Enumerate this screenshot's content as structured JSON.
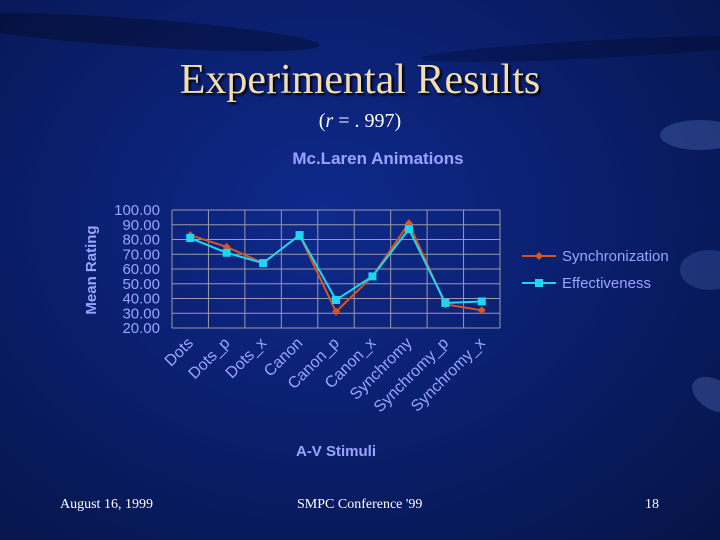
{
  "slide": {
    "title": "Experimental Results",
    "subtitle_r": "r",
    "subtitle_rest": " = . 997)",
    "subtitle_open": "(",
    "footer_left": "August 16, 1999",
    "footer_center": "SMPC Conference '99",
    "footer_right": "18"
  },
  "colors": {
    "synchronization": "#d9541e",
    "effectiveness": "#1fd6f0",
    "chart_text": "#9aa4ff",
    "grid": "#9a9aa6"
  },
  "chart_data": {
    "type": "line",
    "title": "Mc.Laren Animations",
    "xlabel": "A-V Stimuli",
    "ylabel": "Mean Rating",
    "ylim": [
      20,
      100
    ],
    "yticks": [
      "100.00",
      "90.00",
      "80.00",
      "70.00",
      "60.00",
      "50.00",
      "40.00",
      "30.00",
      "20.00"
    ],
    "grid": true,
    "legend_position": "right",
    "categories": [
      "Dots",
      "Dots_p",
      "Dots_x",
      "Canon",
      "Canon_p",
      "Canon_x",
      "Synchromy",
      "Synchromy_p",
      "Synchromy_x"
    ],
    "series": [
      {
        "name": "Synchronization",
        "marker": "diamond",
        "values": [
          83,
          75,
          64,
          83,
          31,
          55,
          91,
          36,
          32
        ]
      },
      {
        "name": "Effectiveness",
        "marker": "square",
        "values": [
          81,
          71,
          64,
          83,
          39,
          55,
          87,
          37,
          38
        ]
      }
    ]
  }
}
